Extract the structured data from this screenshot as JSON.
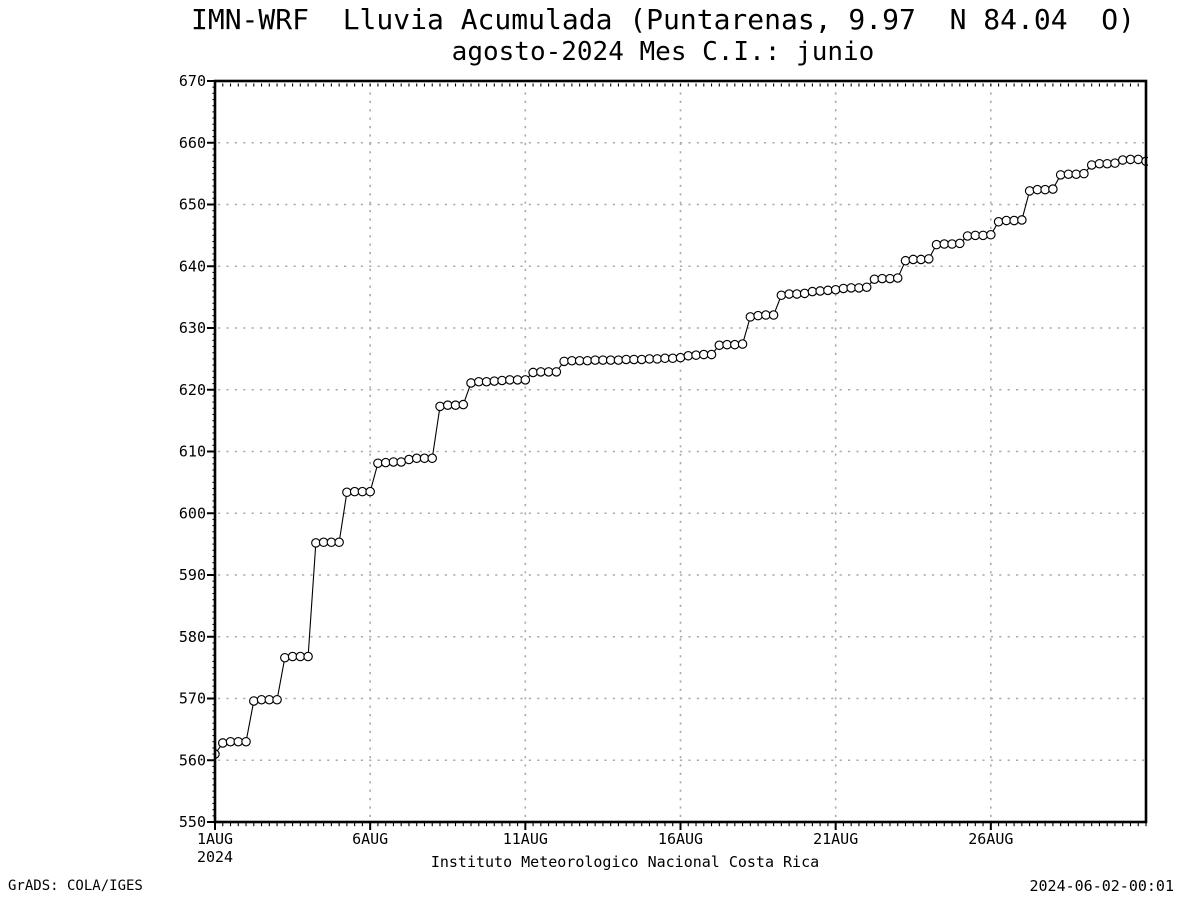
{
  "page": {
    "footer_left": "GrADS: COLA/IGES",
    "footer_right": "2024-06-02-00:01"
  },
  "chart_data": {
    "type": "line",
    "title": "IMN-WRF  Lluvia Acumulada (Puntarenas, 9.97  N 84.04  O)",
    "subtitle": "agosto-2024 Mes C.I.: junio",
    "xlabel": "Instituto Meteorologico Nacional Costa Rica",
    "ylabel": "",
    "ylim": [
      550,
      670
    ],
    "ytick_step": 10,
    "grid": "dotted",
    "grid_color": "#aaaaaa",
    "line_color": "#000000",
    "marker": {
      "shape": "open-circle",
      "radius": 4.2,
      "fill": "#ffffff",
      "stroke": "#000000"
    },
    "x_axis": {
      "start_day": 1,
      "end_day": 31,
      "month": "AUG",
      "year": "2024",
      "ticks": [
        {
          "day": 1,
          "label": "1AUG",
          "sublabel": "2024"
        },
        {
          "day": 6,
          "label": "6AUG"
        },
        {
          "day": 11,
          "label": "11AUG"
        },
        {
          "day": 16,
          "label": "16AUG"
        },
        {
          "day": 21,
          "label": "21AUG"
        },
        {
          "day": 26,
          "label": "26AUG"
        }
      ]
    },
    "series": [
      {
        "name": "lluvia-acumulada-mm",
        "points_per_day": 4,
        "interval_hours": 6,
        "values": [
          561.0,
          562.8,
          563.0,
          563.0,
          563.0,
          569.6,
          569.8,
          569.8,
          569.8,
          576.6,
          576.8,
          576.8,
          576.8,
          595.2,
          595.3,
          595.3,
          595.3,
          603.4,
          603.5,
          603.5,
          603.5,
          608.1,
          608.2,
          608.3,
          608.3,
          608.7,
          608.9,
          608.9,
          608.9,
          617.3,
          617.5,
          617.5,
          617.6,
          621.1,
          621.3,
          621.3,
          621.4,
          621.5,
          621.6,
          621.6,
          621.6,
          622.8,
          622.9,
          622.9,
          622.9,
          624.6,
          624.7,
          624.7,
          624.7,
          624.8,
          624.8,
          624.8,
          624.8,
          624.9,
          624.9,
          624.9,
          625.0,
          625.0,
          625.1,
          625.1,
          625.2,
          625.5,
          625.6,
          625.7,
          625.7,
          627.2,
          627.3,
          627.3,
          627.4,
          631.8,
          632.0,
          632.1,
          632.1,
          635.3,
          635.5,
          635.5,
          635.6,
          635.9,
          636.0,
          636.1,
          636.2,
          636.4,
          636.5,
          636.5,
          636.6,
          637.9,
          638.0,
          638.0,
          638.1,
          640.9,
          641.1,
          641.1,
          641.2,
          643.5,
          643.6,
          643.6,
          643.7,
          644.9,
          645.0,
          645.0,
          645.1,
          647.2,
          647.4,
          647.4,
          647.5,
          652.2,
          652.4,
          652.4,
          652.5,
          654.8,
          654.9,
          654.9,
          655.0,
          656.4,
          656.6,
          656.6,
          656.7,
          657.2,
          657.3,
          657.3,
          657.0
        ]
      }
    ]
  }
}
